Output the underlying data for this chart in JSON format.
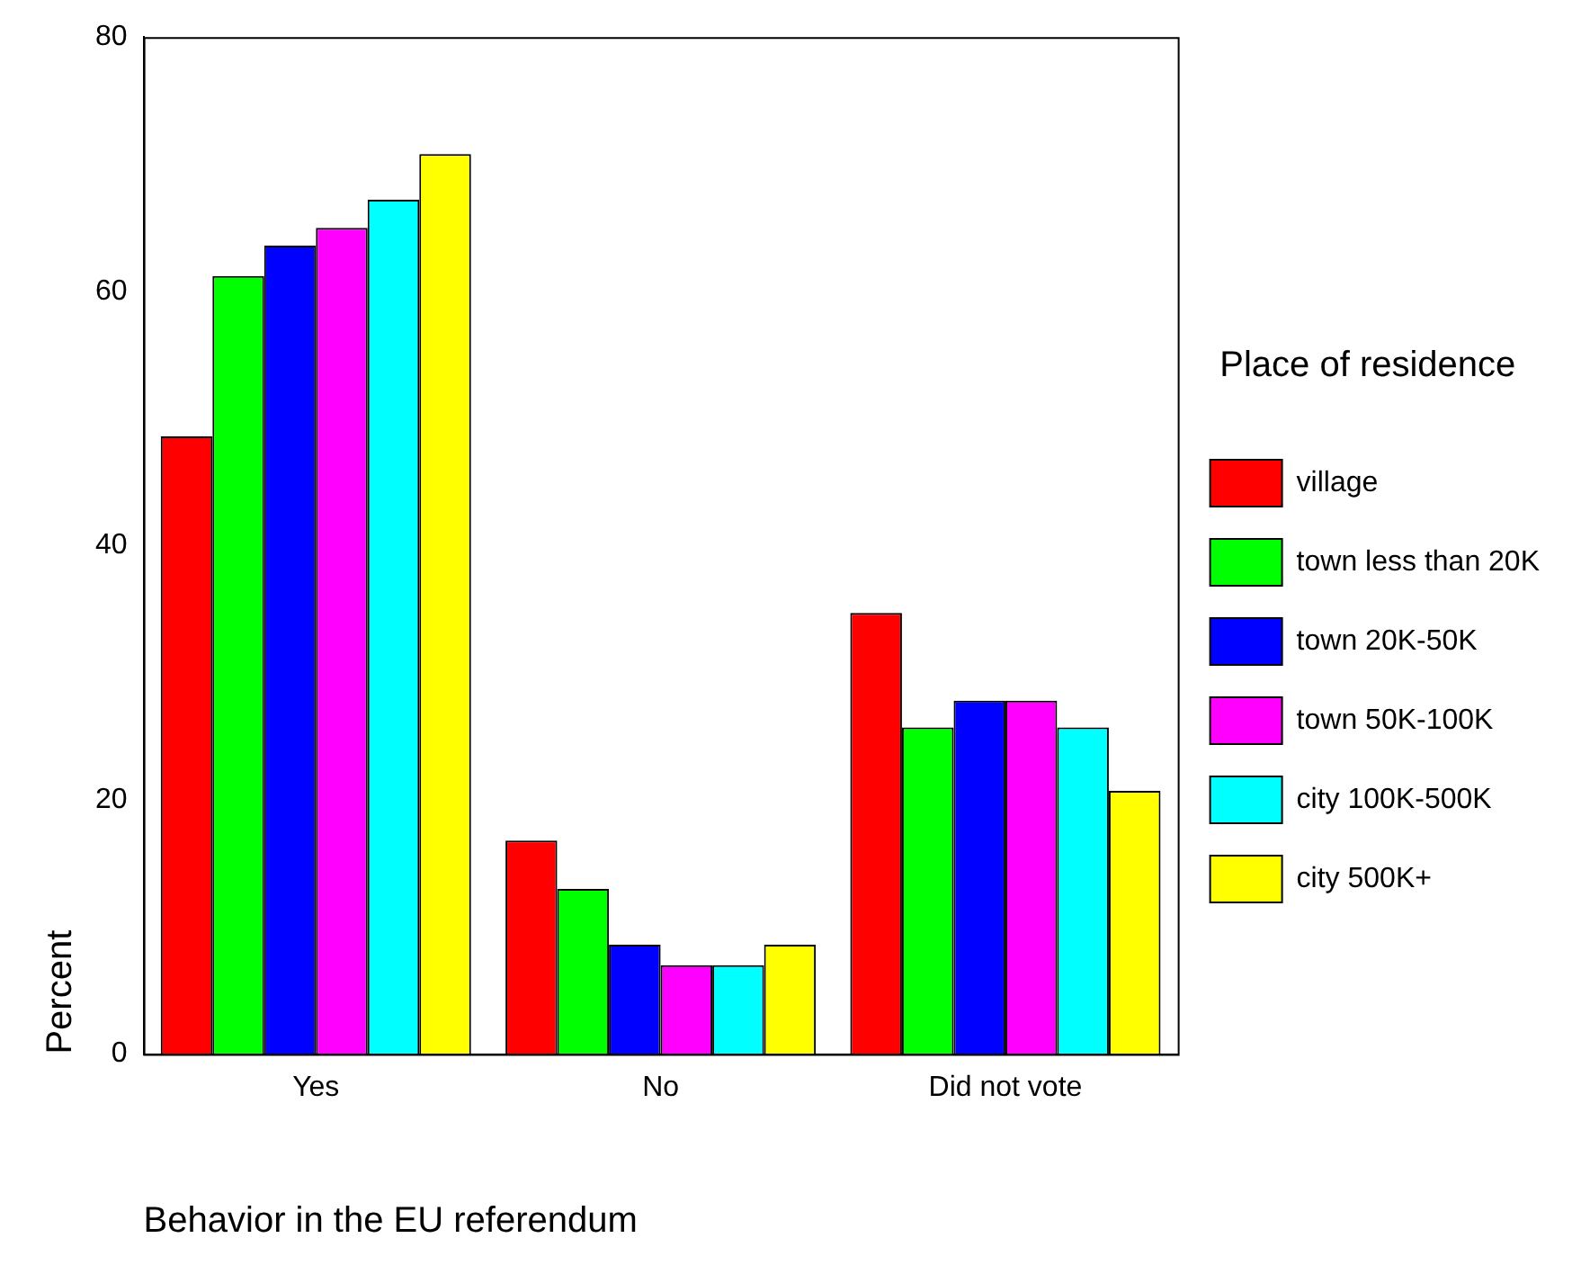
{
  "chart_data": {
    "type": "bar",
    "xlabel": "Behavior in the EU referendum",
    "ylabel": "Percent",
    "legend_title": "Place of residence",
    "categories": [
      "Yes",
      "No",
      "Did not vote"
    ],
    "ylim": [
      0,
      80
    ],
    "yticks": [
      0,
      20,
      40,
      60,
      80
    ],
    "grid": false,
    "legend": "right",
    "series": [
      {
        "name": "village",
        "color": "#ff0000",
        "values": [
          48.6,
          16.8,
          34.7
        ]
      },
      {
        "name": "town less than 20K",
        "color": "#00ff00",
        "values": [
          61.2,
          13.0,
          25.7
        ]
      },
      {
        "name": "town 20K-50K",
        "color": "#0000ff",
        "values": [
          63.6,
          8.6,
          27.8
        ]
      },
      {
        "name": "town 50K-100K",
        "color": "#ff00ff",
        "values": [
          65.0,
          7.0,
          27.8
        ]
      },
      {
        "name": "city 100K-500K",
        "color": "#00ffff",
        "values": [
          67.2,
          7.0,
          25.7
        ]
      },
      {
        "name": "city 500K+",
        "color": "#ffff00",
        "values": [
          70.8,
          8.6,
          20.7
        ]
      }
    ]
  }
}
